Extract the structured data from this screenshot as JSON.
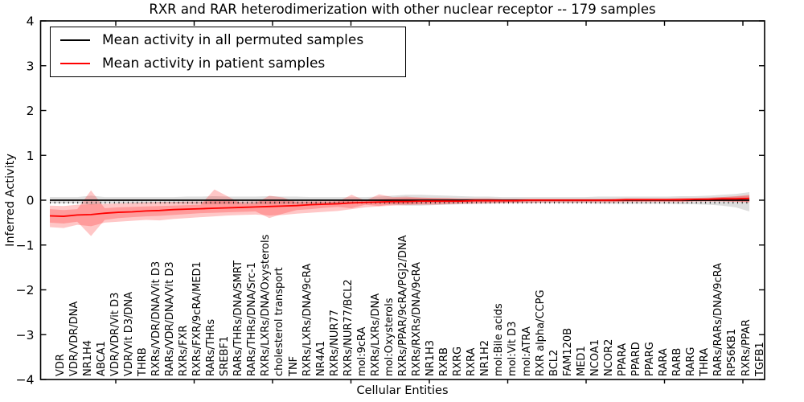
{
  "title": "RXR and RAR heterodimerization with other nuclear receptor -- 179 samples",
  "axes": {
    "ylabel": "Inferred Activity",
    "xlabel": "Cellular Entities",
    "y_tick_labels": [
      "4",
      "3",
      "2",
      "1",
      "0",
      "−1",
      "−2",
      "−3",
      "−4"
    ],
    "y_tick_values": [
      4,
      3,
      2,
      1,
      0,
      -1,
      -2,
      -3,
      -4
    ],
    "ylim": [
      -4,
      4
    ]
  },
  "legend": {
    "entries": [
      {
        "label": "Mean activity in all permuted samples",
        "color": "#000000"
      },
      {
        "label": "Mean activity in patient samples",
        "color": "#ff0000"
      }
    ],
    "position": "upper left"
  },
  "colors": {
    "permuted_line": "#000000",
    "patient_line": "#ff0000",
    "patient_band": "#ff0000",
    "permuted_band": "#888888",
    "frame": "#000000",
    "background": "#ffffff"
  },
  "chart_data": {
    "type": "line",
    "title": "RXR and RAR heterodimerization with other nuclear receptor -- 179 samples",
    "xlabel": "Cellular Entities",
    "ylabel": "Inferred Activity",
    "ylim": [
      -4,
      4
    ],
    "grid": false,
    "legend_position": "upper left",
    "categories": [
      "VDR",
      "VDR/VDR/DNA",
      "NR1H4",
      "ABCA1",
      "VDR/VDR/Vit D3",
      "VDR/Vit D3/DNA",
      "THRB",
      "RXRs/VDR/DNA/Vit D3",
      "RARs/VDR/DNA/Vit D3",
      "RXRs/FXR",
      "RXRs/FXR/9cRA/MED1",
      "RARs/THRs",
      "SREBF1",
      "RARs/THRs/DNA/SMRT",
      "RARs/THRs/DNA/Src-1",
      "RXRs/LXRs/DNA/Oxysterols",
      "cholesterol transport",
      "TNF",
      "RXRs/LXRs/DNA/9cRA",
      "NR4A1",
      "RXRs/NUR77",
      "RXRs/NUR77/BCL2",
      "mol:9cRA",
      "RXRs/LXRs/DNA",
      "mol:Oxysterols",
      "RXRs/PPAR/9cRA/PGJ2/DNA",
      "RXRs/RXRs/DNA/9cRA",
      "NR1H3",
      "RXRB",
      "RXRG",
      "RXRA",
      "NR1H2",
      "mol:Bile acids",
      "mol:Vit D3",
      "mol:ATRA",
      "RXR alpha/CCPG",
      "BCL2",
      "FAM120B",
      "MED1",
      "NCOA1",
      "NCOR2",
      "PPARA",
      "PPARD",
      "PPARG",
      "RARA",
      "RARB",
      "RARG",
      "THRA",
      "RARs/RARs/DNA/9cRA",
      "RPS6KB1",
      "RXRs/PPAR",
      "TGFB1"
    ],
    "series": [
      {
        "name": "Mean activity in all permuted samples",
        "color": "#000000",
        "values": [
          0,
          0,
          0,
          0,
          0,
          0,
          0,
          0,
          0,
          0,
          0,
          0,
          0,
          0,
          0,
          0,
          0,
          0,
          0,
          0,
          0,
          0,
          0,
          0,
          0,
          0,
          0,
          0,
          0,
          0,
          0,
          0,
          0,
          0,
          0,
          0,
          0,
          0,
          0,
          0,
          0,
          0,
          0,
          0,
          0,
          0,
          0,
          0,
          0,
          0,
          0,
          0
        ]
      },
      {
        "name": "Mean activity in patient samples",
        "color": "#ff0000",
        "values": [
          -0.35,
          -0.36,
          -0.33,
          -0.32,
          -0.29,
          -0.27,
          -0.26,
          -0.24,
          -0.23,
          -0.21,
          -0.2,
          -0.19,
          -0.18,
          -0.17,
          -0.16,
          -0.15,
          -0.14,
          -0.13,
          -0.12,
          -0.1,
          -0.09,
          -0.08,
          -0.06,
          -0.05,
          -0.04,
          -0.03,
          -0.03,
          -0.02,
          -0.02,
          -0.02,
          -0.02,
          -0.01,
          -0.01,
          -0.01,
          -0.01,
          0,
          0,
          0,
          0,
          0,
          0,
          0,
          0.01,
          0.01,
          0.01,
          0.01,
          0.01,
          0.02,
          0.02,
          0.03,
          0.03,
          0.04
        ]
      }
    ],
    "bands": [
      {
        "name": "permuted-range",
        "color": "#888888",
        "opacity": 0.28,
        "upper": [
          0.07,
          0.07,
          0.07,
          0.1,
          0.07,
          0.07,
          0.07,
          0.07,
          0.07,
          0.07,
          0.08,
          0.08,
          0.09,
          0.08,
          0.08,
          0.08,
          0.09,
          0.08,
          0.08,
          0.07,
          0.07,
          0.07,
          0.07,
          0.07,
          0.08,
          0.1,
          0.12,
          0.12,
          0.11,
          0.1,
          0.09,
          0.08,
          0.08,
          0.07,
          0.07,
          0.07,
          0.07,
          0.07,
          0.07,
          0.07,
          0.08,
          0.08,
          0.08,
          0.08,
          0.08,
          0.08,
          0.09,
          0.09,
          0.1,
          0.12,
          0.14,
          0.18
        ],
        "lower": [
          -0.07,
          -0.07,
          -0.07,
          -0.1,
          -0.07,
          -0.07,
          -0.07,
          -0.07,
          -0.07,
          -0.07,
          -0.08,
          -0.08,
          -0.09,
          -0.08,
          -0.08,
          -0.08,
          -0.09,
          -0.08,
          -0.08,
          -0.07,
          -0.07,
          -0.07,
          -0.07,
          -0.07,
          -0.08,
          -0.1,
          -0.12,
          -0.12,
          -0.11,
          -0.1,
          -0.09,
          -0.08,
          -0.08,
          -0.07,
          -0.07,
          -0.07,
          -0.07,
          -0.07,
          -0.07,
          -0.07,
          -0.08,
          -0.08,
          -0.08,
          -0.08,
          -0.08,
          -0.08,
          -0.09,
          -0.09,
          -0.1,
          -0.12,
          -0.16,
          -0.25
        ]
      },
      {
        "name": "patient-range-outer",
        "color": "#ff0000",
        "opacity": 0.22,
        "upper": [
          -0.12,
          -0.13,
          -0.1,
          -0.09,
          -0.08,
          -0.07,
          -0.06,
          -0.05,
          -0.04,
          -0.04,
          -0.03,
          -0.03,
          -0.02,
          -0.02,
          -0.03,
          -0.02,
          -0.02,
          -0.02,
          -0.02,
          -0.02,
          -0.01,
          -0.01,
          -0.01,
          -0.01,
          0.02,
          0.04,
          0.05,
          0.05,
          0.05,
          0.05,
          0.04,
          0.04,
          0.04,
          0.03,
          0.03,
          0.03,
          0.03,
          0.03,
          0.03,
          0.03,
          0.03,
          0.03,
          0.04,
          0.04,
          0.04,
          0.04,
          0.05,
          0.05,
          0.06,
          0.07,
          0.08,
          0.1
        ],
        "lower": [
          -0.6,
          -0.62,
          -0.55,
          -0.58,
          -0.5,
          -0.48,
          -0.46,
          -0.44,
          -0.45,
          -0.42,
          -0.4,
          -0.38,
          -0.36,
          -0.34,
          -0.33,
          -0.32,
          -0.34,
          -0.33,
          -0.3,
          -0.28,
          -0.26,
          -0.24,
          -0.2,
          -0.16,
          -0.14,
          -0.12,
          -0.11,
          -0.1,
          -0.1,
          -0.09,
          -0.08,
          -0.08,
          -0.07,
          -0.07,
          -0.06,
          -0.06,
          -0.05,
          -0.05,
          -0.05,
          -0.05,
          -0.05,
          -0.05,
          -0.04,
          -0.04,
          -0.04,
          -0.04,
          -0.04,
          -0.03,
          -0.03,
          -0.03,
          -0.04,
          -0.05
        ]
      },
      {
        "name": "patient-range-inner",
        "color": "#ff0000",
        "opacity": 0.22,
        "upper": [
          -0.2,
          -0.22,
          -0.2,
          0.22,
          -0.18,
          -0.16,
          -0.15,
          -0.14,
          -0.13,
          -0.12,
          -0.11,
          -0.1,
          0.24,
          0.08,
          -0.08,
          -0.07,
          0.1,
          0.06,
          -0.05,
          -0.04,
          -0.04,
          -0.03,
          0.12,
          -0.01,
          0.13,
          0.07,
          0.08,
          0.06,
          0.05,
          0.04,
          0.03,
          0.03,
          0.03,
          0.02,
          0.02,
          0.02,
          0.02,
          0.02,
          0.02,
          0.02,
          0.02,
          0.03,
          0.03,
          0.03,
          0.03,
          0.03,
          0.04,
          0.04,
          0.05,
          0.07,
          0.09,
          0.12
        ],
        "lower": [
          -0.5,
          -0.52,
          -0.48,
          -0.8,
          -0.44,
          -0.4,
          -0.38,
          -0.36,
          -0.35,
          -0.33,
          -0.31,
          -0.29,
          -0.28,
          -0.27,
          -0.26,
          -0.25,
          -0.4,
          -0.3,
          -0.22,
          -0.2,
          -0.17,
          -0.15,
          -0.18,
          -0.1,
          -0.13,
          -0.09,
          -0.09,
          -0.08,
          -0.07,
          -0.07,
          -0.06,
          -0.05,
          -0.05,
          -0.05,
          -0.04,
          -0.04,
          -0.04,
          -0.04,
          -0.04,
          -0.04,
          -0.04,
          -0.04,
          -0.03,
          -0.03,
          -0.03,
          -0.03,
          -0.03,
          -0.02,
          -0.02,
          -0.02,
          -0.03,
          -0.04
        ]
      }
    ]
  }
}
